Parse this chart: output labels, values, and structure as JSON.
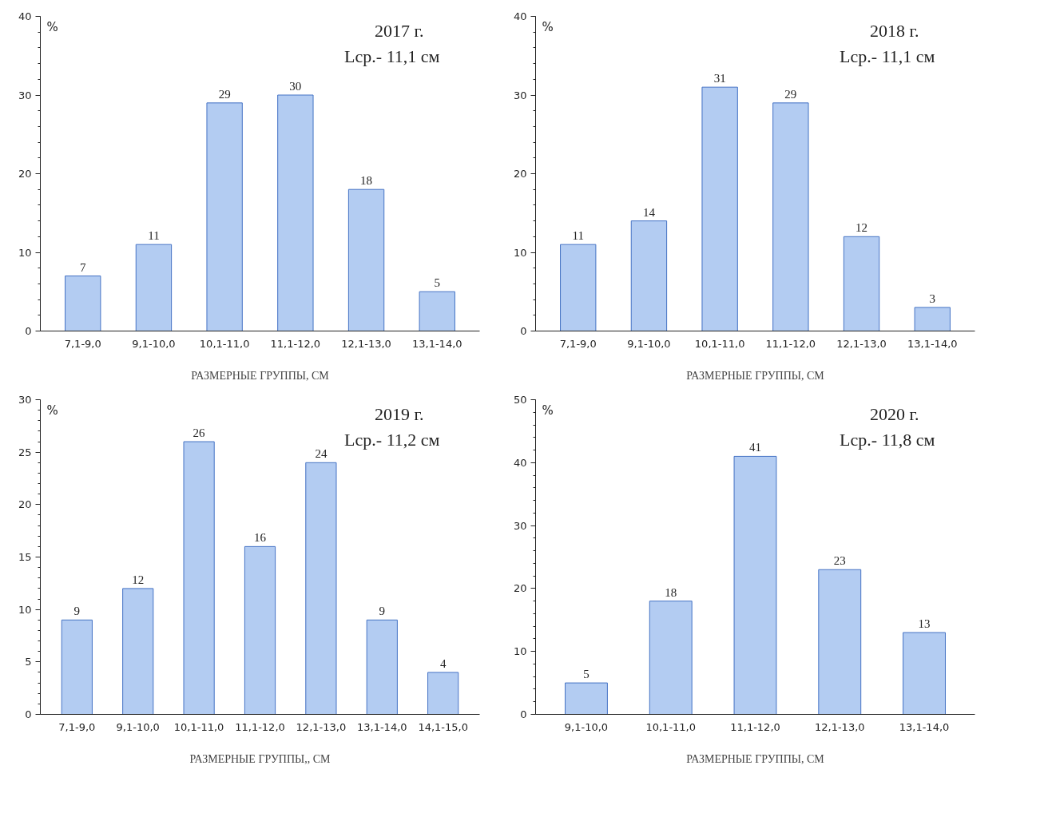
{
  "chart_data": [
    {
      "type": "bar",
      "title": "2017 г.",
      "subtitle": "Lср.- 11,1 см",
      "ylabel": "%",
      "xlabel": "РАЗМЕРНЫЕ ГРУППЫ, СМ",
      "categories": [
        "7,1-9,0",
        "9,1-10,0",
        "10,1-11,0",
        "11,1-12,0",
        "12,1-13,0",
        "13,1-14,0"
      ],
      "values": [
        7,
        11,
        29,
        30,
        18,
        5
      ],
      "color": "#b3ccf2",
      "ylim": [
        0,
        40
      ],
      "yticks": [
        0,
        10,
        20,
        30,
        40
      ],
      "data_labels": true
    },
    {
      "type": "bar",
      "title": "2018 г.",
      "subtitle": "Lср.- 11,1 см",
      "ylabel": "%",
      "xlabel": "РАЗМЕРНЫЕ ГРУППЫ, СМ",
      "categories": [
        "7,1-9,0",
        "9,1-10,0",
        "10,1-11,0",
        "11,1-12,0",
        "12,1-13,0",
        "13,1-14,0"
      ],
      "values": [
        11,
        14,
        31,
        29,
        12,
        3
      ],
      "color": "#b3ccf2",
      "ylim": [
        0,
        40
      ],
      "yticks": [
        0,
        10,
        20,
        30,
        40
      ],
      "data_labels": true
    },
    {
      "type": "bar",
      "title": "2019 г.",
      "subtitle": "Lср.- 11,2 см",
      "ylabel": "%",
      "xlabel": "РАЗМЕРНЫЕ ГРУППЫ,, СМ",
      "categories": [
        "7,1-9,0",
        "9,1-10,0",
        "10,1-11,0",
        "11,1-12,0",
        "12,1-13,0",
        "13,1-14,0",
        "14,1-15,0"
      ],
      "values": [
        9,
        12,
        26,
        16,
        24,
        9,
        4
      ],
      "color": "#b3ccf2",
      "ylim": [
        0,
        30
      ],
      "yticks": [
        0,
        5,
        10,
        15,
        20,
        25,
        30
      ],
      "data_labels": true
    },
    {
      "type": "bar",
      "title": "2020 г.",
      "subtitle": "Lср.- 11,8 см",
      "ylabel": "%",
      "xlabel": "РАЗМЕРНЫЕ ГРУППЫ, СМ",
      "categories": [
        "9,1-10,0",
        "10,1-11,0",
        "11,1-12,0",
        "12,1-13,0",
        "13,1-14,0"
      ],
      "values": [
        5,
        18,
        41,
        23,
        13
      ],
      "color": "#b3ccf2",
      "ylim": [
        0,
        50
      ],
      "yticks": [
        0,
        10,
        20,
        30,
        40,
        50
      ],
      "data_labels": true
    }
  ]
}
